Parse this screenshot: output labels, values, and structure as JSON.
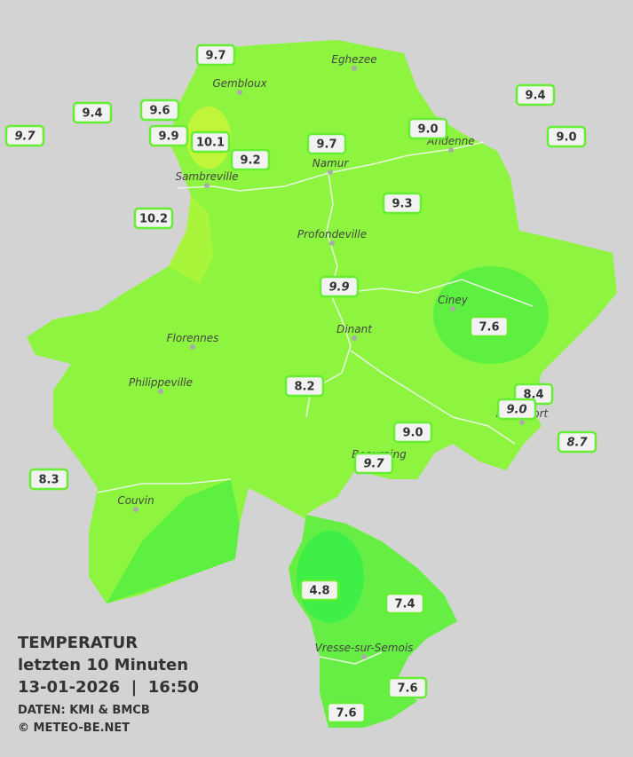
{
  "title": {
    "line1": "TEMPERATUR",
    "line2": "letzten 10 Minuten",
    "line3": "13-01-2026  |  16:50",
    "source": "DATEN: KMI & BMCB",
    "credit": "© METEO-BE.NET"
  },
  "cities": [
    "Eghezee",
    "Gembloux",
    "Andenne",
    "Namur",
    "Sambreville",
    "Profondeville",
    "Ciney",
    "Dinant",
    "Florennes",
    "Philippeville",
    "Rochefort",
    "Beauraing",
    "Couvin",
    "Vresse-sur-Semois"
  ],
  "stations": [
    "9.7",
    "9.4",
    "9.6",
    "9.9",
    "10.1",
    "9.7",
    "9.2",
    "9.7",
    "9.0",
    "9.4",
    "9.0",
    "9.3",
    "10.2",
    "9.9",
    "7.6",
    "8.2",
    "8.4",
    "9.0",
    "9.0",
    "8.7",
    "9.7",
    "8.3",
    "4.8",
    "7.4",
    "7.6",
    "7.6"
  ]
}
